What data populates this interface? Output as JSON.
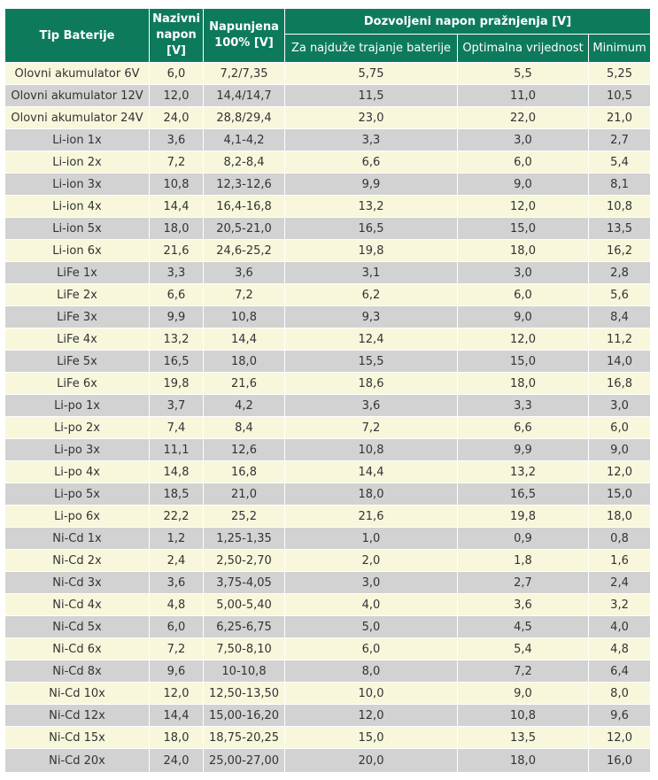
{
  "header": {
    "type": "Tip Baterije",
    "nominal": "Nazivni napon [V]",
    "charged": "Napunjena 100% [V]",
    "discharge_group": "Dozvoljeni napon pražnjenja [V]",
    "longest": "Za najduže trajanje baterije",
    "optimal": "Optimalna vrijednost",
    "minimum": "Minimum"
  },
  "rows": [
    [
      "Olovni akumulator 6V",
      "6,0",
      "7,2/7,35",
      "5,75",
      "5,5",
      "5,25"
    ],
    [
      "Olovni akumulator 12V",
      "12,0",
      "14,4/14,7",
      "11,5",
      "11,0",
      "10,5"
    ],
    [
      "Olovni akumulator 24V",
      "24,0",
      "28,8/29,4",
      "23,0",
      "22,0",
      "21,0"
    ],
    [
      "Li-ion 1x",
      "3,6",
      "4,1-4,2",
      "3,3",
      "3,0",
      "2,7"
    ],
    [
      "Li-ion 2x",
      "7,2",
      "8,2-8,4",
      "6,6",
      "6,0",
      "5,4"
    ],
    [
      "Li-ion 3x",
      "10,8",
      "12,3-12,6",
      "9,9",
      "9,0",
      "8,1"
    ],
    [
      "Li-ion 4x",
      "14,4",
      "16,4-16,8",
      "13,2",
      "12,0",
      "10,8"
    ],
    [
      "Li-ion 5x",
      "18,0",
      "20,5-21,0",
      "16,5",
      "15,0",
      "13,5"
    ],
    [
      "Li-ion 6x",
      "21,6",
      "24,6-25,2",
      "19,8",
      "18,0",
      "16,2"
    ],
    [
      "LiFe 1x",
      "3,3",
      "3,6",
      "3,1",
      "3,0",
      "2,8"
    ],
    [
      "LiFe 2x",
      "6,6",
      "7,2",
      "6,2",
      "6,0",
      "5,6"
    ],
    [
      "LiFe 3x",
      "9,9",
      "10,8",
      "9,3",
      "9,0",
      "8,4"
    ],
    [
      "LiFe 4x",
      "13,2",
      "14,4",
      "12,4",
      "12,0",
      "11,2"
    ],
    [
      "LiFe 5x",
      "16,5",
      "18,0",
      "15,5",
      "15,0",
      "14,0"
    ],
    [
      "LiFe 6x",
      "19,8",
      "21,6",
      "18,6",
      "18,0",
      "16,8"
    ],
    [
      "Li-po 1x",
      "3,7",
      "4,2",
      "3,6",
      "3,3",
      "3,0"
    ],
    [
      "Li-po 2x",
      "7,4",
      "8,4",
      "7,2",
      "6,6",
      "6,0"
    ],
    [
      "Li-po 3x",
      "11,1",
      "12,6",
      "10,8",
      "9,9",
      "9,0"
    ],
    [
      "Li-po 4x",
      "14,8",
      "16,8",
      "14,4",
      "13,2",
      "12,0"
    ],
    [
      "Li-po 5x",
      "18,5",
      "21,0",
      "18,0",
      "16,5",
      "15,0"
    ],
    [
      "Li-po 6x",
      "22,2",
      "25,2",
      "21,6",
      "19,8",
      "18,0"
    ],
    [
      "Ni-Cd 1x",
      "1,2",
      "1,25-1,35",
      "1,0",
      "0,9",
      "0,8"
    ],
    [
      "Ni-Cd 2x",
      "2,4",
      "2,50-2,70",
      "2,0",
      "1,8",
      "1,6"
    ],
    [
      "Ni-Cd 3x",
      "3,6",
      "3,75-4,05",
      "3,0",
      "2,7",
      "2,4"
    ],
    [
      "Ni-Cd 4x",
      "4,8",
      "5,00-5,40",
      "4,0",
      "3,6",
      "3,2"
    ],
    [
      "Ni-Cd 5x",
      "6,0",
      "6,25-6,75",
      "5,0",
      "4,5",
      "4,0"
    ],
    [
      "Ni-Cd 6x",
      "7,2",
      "7,50-8,10",
      "6,0",
      "5,4",
      "4,8"
    ],
    [
      "Ni-Cd 8x",
      "9,6",
      "10-10,8",
      "8,0",
      "7,2",
      "6,4"
    ],
    [
      "Ni-Cd 10x",
      "12,0",
      "12,50-13,50",
      "10,0",
      "9,0",
      "8,0"
    ],
    [
      "Ni-Cd 12x",
      "14,4",
      "15,00-16,20",
      "12,0",
      "10,8",
      "9,6"
    ],
    [
      "Ni-Cd 15x",
      "18,0",
      "18,75-20,25",
      "15,0",
      "13,5",
      "12,0"
    ],
    [
      "Ni-Cd 20x",
      "24,0",
      "25,00-27,00",
      "20,0",
      "18,0",
      "16,0"
    ]
  ]
}
